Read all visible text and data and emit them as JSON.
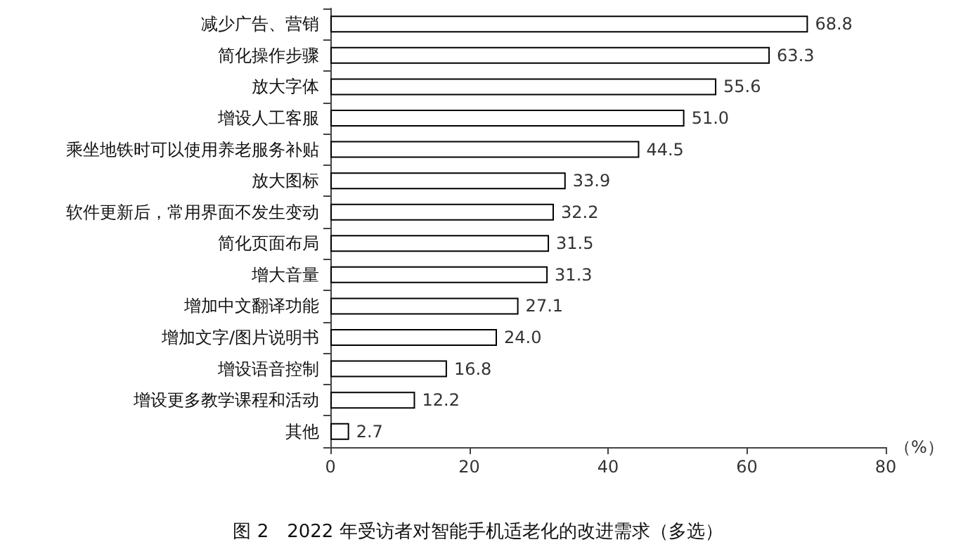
{
  "chart_data": {
    "type": "bar",
    "orientation": "horizontal",
    "title": "图 2　2022 年受访者对智能手机适老化的改进需求（多选）",
    "xlabel": "（%）",
    "categories": [
      "减少广告、营销",
      "简化操作步骤",
      "放大字体",
      "增设人工客服",
      "乘坐地铁时可以使用养老服务补贴",
      "放大图标",
      "软件更新后，常用界面不发生变动",
      "简化页面布局",
      "增大音量",
      "增加中文翻译功能",
      "增加文字/图片说明书",
      "增设语音控制",
      "增设更多教学课程和活动",
      "其他"
    ],
    "values": [
      68.8,
      63.3,
      55.6,
      51.0,
      44.5,
      33.9,
      32.2,
      31.5,
      31.3,
      27.1,
      24.0,
      16.8,
      12.2,
      2.7
    ],
    "value_labels": [
      "68.8",
      "63.3",
      "55.6",
      "51.0",
      "44.5",
      "33.9",
      "32.2",
      "31.5",
      "31.3",
      "27.1",
      "24.0",
      "16.8",
      "12.2",
      "2.7"
    ],
    "color": "#ffffff",
    "xlim": [
      0,
      80
    ],
    "xticks": [
      0,
      20,
      40,
      60,
      80
    ],
    "grid": false
  }
}
